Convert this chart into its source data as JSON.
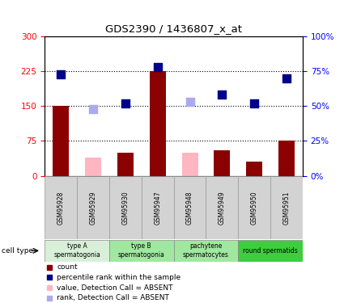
{
  "title": "GDS2390 / 1436807_x_at",
  "samples": [
    "GSM95928",
    "GSM95929",
    "GSM95930",
    "GSM95947",
    "GSM95948",
    "GSM95949",
    "GSM95950",
    "GSM95951"
  ],
  "count_values": [
    150,
    null,
    50,
    225,
    null,
    55,
    30,
    75
  ],
  "absent_count_values": [
    null,
    40,
    null,
    null,
    50,
    null,
    null,
    null
  ],
  "rank_values": [
    73,
    null,
    52,
    78,
    null,
    58,
    52,
    70
  ],
  "absent_rank_values": [
    null,
    48,
    null,
    null,
    53,
    null,
    null,
    null
  ],
  "cell_groups": [
    {
      "label": "type A\nspermatogonia",
      "start": 0,
      "end": 1,
      "color": "#d8f0d8"
    },
    {
      "label": "type B\nspermatogonia",
      "start": 2,
      "end": 3,
      "color": "#a0e8a0"
    },
    {
      "label": "pachytene\nspermatocytes",
      "start": 4,
      "end": 5,
      "color": "#a0e8a0"
    },
    {
      "label": "round spermatids",
      "start": 6,
      "end": 7,
      "color": "#40cc40"
    }
  ],
  "ylim_left": [
    0,
    300
  ],
  "yticks_left": [
    0,
    75,
    150,
    225,
    300
  ],
  "ytick_labels_left": [
    "0",
    "75",
    "150",
    "225",
    "300"
  ],
  "yticks_right": [
    0,
    25,
    50,
    75,
    100
  ],
  "ytick_labels_right": [
    "0%",
    "25%",
    "50%",
    "75%",
    "100%"
  ],
  "hlines": [
    75,
    150,
    225
  ],
  "bar_color_present": "#8b0000",
  "bar_color_absent": "#ffb6c1",
  "rank_color_present": "#00008b",
  "rank_color_absent": "#aaaaee",
  "bar_width": 0.5,
  "rank_marker_size": 55,
  "legend_items": [
    {
      "color": "#8b0000",
      "label": "count"
    },
    {
      "color": "#00008b",
      "label": "percentile rank within the sample"
    },
    {
      "color": "#ffb6c1",
      "label": "value, Detection Call = ABSENT"
    },
    {
      "color": "#aaaaee",
      "label": "rank, Detection Call = ABSENT"
    }
  ]
}
